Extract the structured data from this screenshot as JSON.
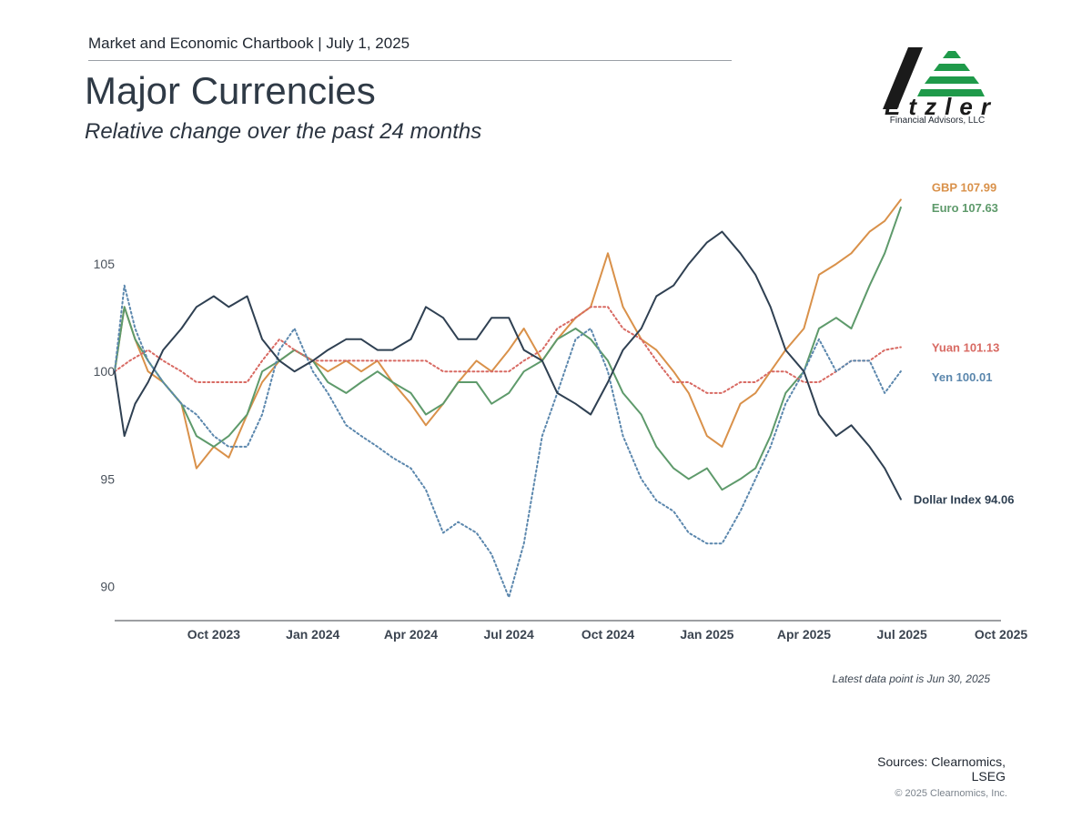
{
  "header": {
    "chartbook": "Market and Economic Chartbook | July 1, 2025",
    "title": "Major Currencies",
    "subtitle": "Relative change over the past 24 months"
  },
  "logo": {
    "name": "Etzler",
    "tagline": "Financial Advisors, LLC",
    "colors": {
      "dark": "#1a1a1a",
      "green": "#1f9a4a"
    }
  },
  "footer": {
    "note": "Latest data point is Jun 30, 2025",
    "sources_line1": "Sources: Clearnomics,",
    "sources_line2": "LSEG",
    "copyright": "© 2025 Clearnomics, Inc."
  },
  "chart_data": {
    "type": "line",
    "ylim": [
      88.5,
      108.6
    ],
    "yticks": [
      90,
      95,
      100,
      105
    ],
    "xlim": [
      "2023-07-01",
      "2025-10-01"
    ],
    "xticks": [
      {
        "date": "2023-10-01",
        "label": "Oct 2023"
      },
      {
        "date": "2024-01-01",
        "label": "Jan 2024"
      },
      {
        "date": "2024-04-01",
        "label": "Apr 2024"
      },
      {
        "date": "2024-07-01",
        "label": "Jul 2024"
      },
      {
        "date": "2024-10-01",
        "label": "Oct 2024"
      },
      {
        "date": "2025-01-01",
        "label": "Jan 2025"
      },
      {
        "date": "2025-04-01",
        "label": "Apr 2025"
      },
      {
        "date": "2025-07-01",
        "label": "Jul 2025"
      },
      {
        "date": "2025-10-01",
        "label": "Oct 2025"
      }
    ],
    "grid": false,
    "legend": "end-labels",
    "series": [
      {
        "name": "GBP",
        "end_label": "GBP 107.99",
        "color": "#d9914a",
        "dash": "solid",
        "points": [
          [
            "2023-07-01",
            100.0
          ],
          [
            "2023-07-10",
            103.0
          ],
          [
            "2023-07-20",
            101.5
          ],
          [
            "2023-08-01",
            100.0
          ],
          [
            "2023-08-15",
            99.5
          ],
          [
            "2023-09-01",
            98.5
          ],
          [
            "2023-09-15",
            95.5
          ],
          [
            "2023-10-01",
            96.5
          ],
          [
            "2023-10-15",
            96.0
          ],
          [
            "2023-11-01",
            98.0
          ],
          [
            "2023-11-15",
            99.5
          ],
          [
            "2023-12-01",
            100.5
          ],
          [
            "2023-12-15",
            101.0
          ],
          [
            "2024-01-01",
            100.5
          ],
          [
            "2024-01-15",
            100.0
          ],
          [
            "2024-02-01",
            100.5
          ],
          [
            "2024-02-15",
            100.0
          ],
          [
            "2024-03-01",
            100.5
          ],
          [
            "2024-03-15",
            99.5
          ],
          [
            "2024-04-01",
            98.5
          ],
          [
            "2024-04-15",
            97.5
          ],
          [
            "2024-05-01",
            98.5
          ],
          [
            "2024-05-15",
            99.5
          ],
          [
            "2024-06-01",
            100.5
          ],
          [
            "2024-06-15",
            100.0
          ],
          [
            "2024-07-01",
            101.0
          ],
          [
            "2024-07-15",
            102.0
          ],
          [
            "2024-08-01",
            100.5
          ],
          [
            "2024-08-15",
            101.5
          ],
          [
            "2024-09-01",
            102.5
          ],
          [
            "2024-09-15",
            103.0
          ],
          [
            "2024-10-01",
            105.5
          ],
          [
            "2024-10-15",
            103.0
          ],
          [
            "2024-11-01",
            101.5
          ],
          [
            "2024-11-15",
            101.0
          ],
          [
            "2024-12-01",
            100.0
          ],
          [
            "2024-12-15",
            99.0
          ],
          [
            "2025-01-01",
            97.0
          ],
          [
            "2025-01-15",
            96.5
          ],
          [
            "2025-02-01",
            98.5
          ],
          [
            "2025-02-15",
            99.0
          ],
          [
            "2025-03-01",
            100.0
          ],
          [
            "2025-03-15",
            101.0
          ],
          [
            "2025-04-01",
            102.0
          ],
          [
            "2025-04-15",
            104.5
          ],
          [
            "2025-05-01",
            105.0
          ],
          [
            "2025-05-15",
            105.5
          ],
          [
            "2025-06-01",
            106.5
          ],
          [
            "2025-06-15",
            107.0
          ],
          [
            "2025-06-30",
            107.99
          ]
        ]
      },
      {
        "name": "Euro",
        "end_label": "Euro 107.63",
        "color": "#5e9a6b",
        "dash": "solid",
        "points": [
          [
            "2023-07-01",
            100.0
          ],
          [
            "2023-07-10",
            103.0
          ],
          [
            "2023-07-20",
            101.5
          ],
          [
            "2023-08-01",
            100.5
          ],
          [
            "2023-08-15",
            99.5
          ],
          [
            "2023-09-01",
            98.5
          ],
          [
            "2023-09-15",
            97.0
          ],
          [
            "2023-10-01",
            96.5
          ],
          [
            "2023-10-15",
            97.0
          ],
          [
            "2023-11-01",
            98.0
          ],
          [
            "2023-11-15",
            100.0
          ],
          [
            "2023-12-01",
            100.5
          ],
          [
            "2023-12-15",
            101.0
          ],
          [
            "2024-01-01",
            100.5
          ],
          [
            "2024-01-15",
            99.5
          ],
          [
            "2024-02-01",
            99.0
          ],
          [
            "2024-02-15",
            99.5
          ],
          [
            "2024-03-01",
            100.0
          ],
          [
            "2024-03-15",
            99.5
          ],
          [
            "2024-04-01",
            99.0
          ],
          [
            "2024-04-15",
            98.0
          ],
          [
            "2024-05-01",
            98.5
          ],
          [
            "2024-05-15",
            99.5
          ],
          [
            "2024-06-01",
            99.5
          ],
          [
            "2024-06-15",
            98.5
          ],
          [
            "2024-07-01",
            99.0
          ],
          [
            "2024-07-15",
            100.0
          ],
          [
            "2024-08-01",
            100.5
          ],
          [
            "2024-08-15",
            101.5
          ],
          [
            "2024-09-01",
            102.0
          ],
          [
            "2024-09-15",
            101.5
          ],
          [
            "2024-10-01",
            100.5
          ],
          [
            "2024-10-15",
            99.0
          ],
          [
            "2024-11-01",
            98.0
          ],
          [
            "2024-11-15",
            96.5
          ],
          [
            "2024-12-01",
            95.5
          ],
          [
            "2024-12-15",
            95.0
          ],
          [
            "2025-01-01",
            95.5
          ],
          [
            "2025-01-15",
            94.5
          ],
          [
            "2025-02-01",
            95.0
          ],
          [
            "2025-02-15",
            95.5
          ],
          [
            "2025-03-01",
            97.0
          ],
          [
            "2025-03-15",
            99.0
          ],
          [
            "2025-04-01",
            100.0
          ],
          [
            "2025-04-15",
            102.0
          ],
          [
            "2025-05-01",
            102.5
          ],
          [
            "2025-05-15",
            102.0
          ],
          [
            "2025-06-01",
            104.0
          ],
          [
            "2025-06-15",
            105.5
          ],
          [
            "2025-06-30",
            107.63
          ]
        ]
      },
      {
        "name": "Yuan",
        "end_label": "Yuan 101.13",
        "color": "#d86a63",
        "dash": "dotted",
        "points": [
          [
            "2023-07-01",
            100.0
          ],
          [
            "2023-07-15",
            100.5
          ],
          [
            "2023-08-01",
            101.0
          ],
          [
            "2023-08-15",
            100.5
          ],
          [
            "2023-09-01",
            100.0
          ],
          [
            "2023-09-15",
            99.5
          ],
          [
            "2023-10-01",
            99.5
          ],
          [
            "2023-10-15",
            99.5
          ],
          [
            "2023-11-01",
            99.5
          ],
          [
            "2023-11-15",
            100.5
          ],
          [
            "2023-12-01",
            101.5
          ],
          [
            "2023-12-15",
            101.0
          ],
          [
            "2024-01-01",
            100.5
          ],
          [
            "2024-01-15",
            100.5
          ],
          [
            "2024-02-01",
            100.5
          ],
          [
            "2024-02-15",
            100.5
          ],
          [
            "2024-03-01",
            100.5
          ],
          [
            "2024-03-15",
            100.5
          ],
          [
            "2024-04-01",
            100.5
          ],
          [
            "2024-04-15",
            100.5
          ],
          [
            "2024-05-01",
            100.0
          ],
          [
            "2024-05-15",
            100.0
          ],
          [
            "2024-06-01",
            100.0
          ],
          [
            "2024-06-15",
            100.0
          ],
          [
            "2024-07-01",
            100.0
          ],
          [
            "2024-07-15",
            100.5
          ],
          [
            "2024-08-01",
            101.0
          ],
          [
            "2024-08-15",
            102.0
          ],
          [
            "2024-09-01",
            102.5
          ],
          [
            "2024-09-15",
            103.0
          ],
          [
            "2024-10-01",
            103.0
          ],
          [
            "2024-10-15",
            102.0
          ],
          [
            "2024-11-01",
            101.5
          ],
          [
            "2024-11-15",
            100.5
          ],
          [
            "2024-12-01",
            99.5
          ],
          [
            "2024-12-15",
            99.5
          ],
          [
            "2025-01-01",
            99.0
          ],
          [
            "2025-01-15",
            99.0
          ],
          [
            "2025-02-01",
            99.5
          ],
          [
            "2025-02-15",
            99.5
          ],
          [
            "2025-03-01",
            100.0
          ],
          [
            "2025-03-15",
            100.0
          ],
          [
            "2025-04-01",
            99.5
          ],
          [
            "2025-04-15",
            99.5
          ],
          [
            "2025-05-01",
            100.0
          ],
          [
            "2025-05-15",
            100.5
          ],
          [
            "2025-06-01",
            100.5
          ],
          [
            "2025-06-15",
            101.0
          ],
          [
            "2025-06-30",
            101.13
          ]
        ]
      },
      {
        "name": "Yen",
        "end_label": "Yen 100.01",
        "color": "#5b87ad",
        "dash": "dotted",
        "points": [
          [
            "2023-07-01",
            100.0
          ],
          [
            "2023-07-10",
            104.0
          ],
          [
            "2023-07-20",
            102.0
          ],
          [
            "2023-08-01",
            100.5
          ],
          [
            "2023-08-15",
            99.5
          ],
          [
            "2023-09-01",
            98.5
          ],
          [
            "2023-09-15",
            98.0
          ],
          [
            "2023-10-01",
            97.0
          ],
          [
            "2023-10-15",
            96.5
          ],
          [
            "2023-11-01",
            96.5
          ],
          [
            "2023-11-15",
            98.0
          ],
          [
            "2023-12-01",
            101.0
          ],
          [
            "2023-12-15",
            102.0
          ],
          [
            "2024-01-01",
            100.0
          ],
          [
            "2024-01-15",
            99.0
          ],
          [
            "2024-02-01",
            97.5
          ],
          [
            "2024-02-15",
            97.0
          ],
          [
            "2024-03-01",
            96.5
          ],
          [
            "2024-03-15",
            96.0
          ],
          [
            "2024-04-01",
            95.5
          ],
          [
            "2024-04-15",
            94.5
          ],
          [
            "2024-05-01",
            92.5
          ],
          [
            "2024-05-15",
            93.0
          ],
          [
            "2024-06-01",
            92.5
          ],
          [
            "2024-06-15",
            91.5
          ],
          [
            "2024-07-01",
            89.5
          ],
          [
            "2024-07-15",
            92.0
          ],
          [
            "2024-08-01",
            97.0
          ],
          [
            "2024-08-15",
            99.0
          ],
          [
            "2024-09-01",
            101.5
          ],
          [
            "2024-09-15",
            102.0
          ],
          [
            "2024-10-01",
            100.0
          ],
          [
            "2024-10-15",
            97.0
          ],
          [
            "2024-11-01",
            95.0
          ],
          [
            "2024-11-15",
            94.0
          ],
          [
            "2024-12-01",
            93.5
          ],
          [
            "2024-12-15",
            92.5
          ],
          [
            "2025-01-01",
            92.0
          ],
          [
            "2025-01-15",
            92.0
          ],
          [
            "2025-02-01",
            93.5
          ],
          [
            "2025-02-15",
            95.0
          ],
          [
            "2025-03-01",
            96.5
          ],
          [
            "2025-03-15",
            98.5
          ],
          [
            "2025-04-01",
            100.0
          ],
          [
            "2025-04-15",
            101.5
          ],
          [
            "2025-05-01",
            100.0
          ],
          [
            "2025-05-15",
            100.5
          ],
          [
            "2025-06-01",
            100.5
          ],
          [
            "2025-06-15",
            99.0
          ],
          [
            "2025-06-30",
            100.01
          ]
        ]
      },
      {
        "name": "Dollar Index",
        "end_label": "Dollar Index 94.06",
        "color": "#2f4052",
        "dash": "solid",
        "points": [
          [
            "2023-07-01",
            100.0
          ],
          [
            "2023-07-10",
            97.0
          ],
          [
            "2023-07-20",
            98.5
          ],
          [
            "2023-08-01",
            99.5
          ],
          [
            "2023-08-15",
            101.0
          ],
          [
            "2023-09-01",
            102.0
          ],
          [
            "2023-09-15",
            103.0
          ],
          [
            "2023-10-01",
            103.5
          ],
          [
            "2023-10-15",
            103.0
          ],
          [
            "2023-11-01",
            103.5
          ],
          [
            "2023-11-15",
            101.5
          ],
          [
            "2023-12-01",
            100.5
          ],
          [
            "2023-12-15",
            100.0
          ],
          [
            "2024-01-01",
            100.5
          ],
          [
            "2024-01-15",
            101.0
          ],
          [
            "2024-02-01",
            101.5
          ],
          [
            "2024-02-15",
            101.5
          ],
          [
            "2024-03-01",
            101.0
          ],
          [
            "2024-03-15",
            101.0
          ],
          [
            "2024-04-01",
            101.5
          ],
          [
            "2024-04-15",
            103.0
          ],
          [
            "2024-05-01",
            102.5
          ],
          [
            "2024-05-15",
            101.5
          ],
          [
            "2024-06-01",
            101.5
          ],
          [
            "2024-06-15",
            102.5
          ],
          [
            "2024-07-01",
            102.5
          ],
          [
            "2024-07-15",
            101.0
          ],
          [
            "2024-08-01",
            100.5
          ],
          [
            "2024-08-15",
            99.0
          ],
          [
            "2024-09-01",
            98.5
          ],
          [
            "2024-09-15",
            98.0
          ],
          [
            "2024-10-01",
            99.5
          ],
          [
            "2024-10-15",
            101.0
          ],
          [
            "2024-11-01",
            102.0
          ],
          [
            "2024-11-15",
            103.5
          ],
          [
            "2024-12-01",
            104.0
          ],
          [
            "2024-12-15",
            105.0
          ],
          [
            "2025-01-01",
            106.0
          ],
          [
            "2025-01-15",
            106.5
          ],
          [
            "2025-02-01",
            105.5
          ],
          [
            "2025-02-15",
            104.5
          ],
          [
            "2025-03-01",
            103.0
          ],
          [
            "2025-03-15",
            101.0
          ],
          [
            "2025-04-01",
            100.0
          ],
          [
            "2025-04-15",
            98.0
          ],
          [
            "2025-05-01",
            97.0
          ],
          [
            "2025-05-15",
            97.5
          ],
          [
            "2025-06-01",
            96.5
          ],
          [
            "2025-06-15",
            95.5
          ],
          [
            "2025-06-30",
            94.06
          ]
        ]
      }
    ]
  }
}
